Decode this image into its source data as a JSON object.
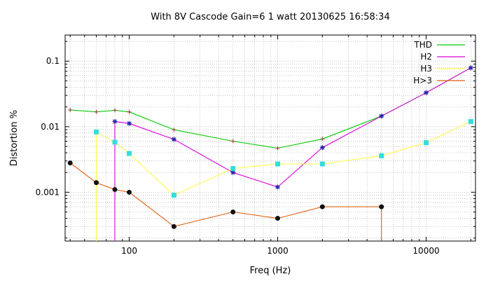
{
  "chart_data": {
    "type": "line",
    "title": "With 8V Cascode Gain=6 1 watt 20130625 16:58:34",
    "xlabel": "Freq (Hz)",
    "ylabel": "Distortion %",
    "xscale": "log",
    "yscale": "log",
    "xlim": [
      37,
      21500
    ],
    "ylim": [
      0.00018,
      0.25
    ],
    "xticks": [
      100,
      1000,
      10000
    ],
    "xtick_labels": [
      "100",
      "1000",
      "10000"
    ],
    "yticks": [
      0.001,
      0.01,
      0.1
    ],
    "ytick_labels": [
      "0.001",
      "0.01",
      "0.1"
    ],
    "grid": true,
    "legend_position": "top-right",
    "series": [
      {
        "name": "THD",
        "color": "#00cc00",
        "marker": "plus",
        "x": [
          40,
          60,
          80,
          100,
          200,
          500,
          1000,
          2000,
          5000,
          10000,
          20000
        ],
        "y": [
          0.018,
          0.0168,
          0.0178,
          0.0168,
          0.009,
          0.006,
          0.0047,
          0.0065,
          0.0145,
          0.033,
          0.079
        ]
      },
      {
        "name": "H2",
        "color": "#dd00dd",
        "marker": "star",
        "x": [
          80,
          80,
          100,
          200,
          500,
          1000,
          2000,
          5000,
          10000,
          20000
        ],
        "y": [
          0.0001,
          0.012,
          0.0112,
          0.0064,
          0.002,
          0.0012,
          0.0048,
          0.0145,
          0.033,
          0.079
        ]
      },
      {
        "name": "H3",
        "color": "#ffff44",
        "marker": "square",
        "x": [
          60,
          60,
          80,
          100,
          200,
          500,
          1000,
          2000,
          5000,
          10000,
          20000
        ],
        "y": [
          0.0001,
          0.0083,
          0.0058,
          0.0039,
          0.0009,
          0.0023,
          0.0027,
          0.0027,
          0.0036,
          0.0057,
          0.012
        ]
      },
      {
        "name": "H>3",
        "color": "#e06010",
        "marker": "circle",
        "x": [
          40,
          60,
          80,
          100,
          200,
          500,
          1000,
          2000,
          5000,
          5000
        ],
        "y": [
          0.0028,
          0.0014,
          0.0011,
          0.001,
          0.0003,
          0.0005,
          0.0004,
          0.0006,
          0.0006,
          0.0001
        ]
      }
    ]
  }
}
